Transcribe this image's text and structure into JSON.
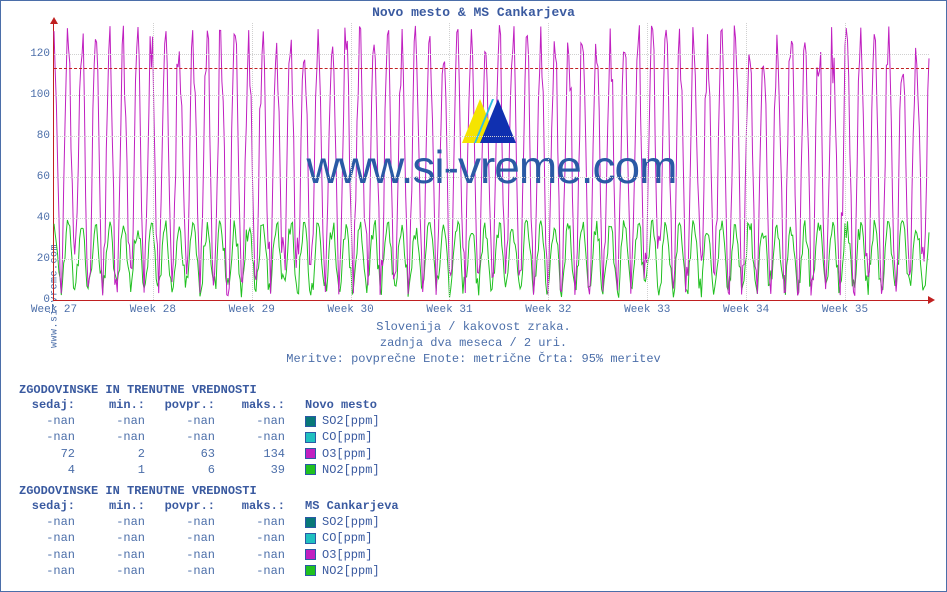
{
  "chart": {
    "title": "Novo mesto & MS Cankarjeva",
    "type": "line",
    "yaxis_source": "www.si-vreme.com",
    "watermark": "www.si-vreme.com",
    "ylim": [
      0,
      135
    ],
    "yticks": [
      0,
      20,
      40,
      60,
      80,
      100,
      120
    ],
    "limit_line_y": 113,
    "xticks": [
      "Week 27",
      "Week 28",
      "Week 29",
      "Week 30",
      "Week 31",
      "Week 32",
      "Week 33",
      "Week 34",
      "Week 35"
    ],
    "background_color": "#ffffff",
    "grid_color": "#d0d0d0",
    "axis_color": "#c02020",
    "text_color": "#4b6ea9",
    "title_fontsize": 13,
    "tick_fontsize": 11,
    "series": {
      "O3_novo_mesto": {
        "color": "#c020c0",
        "stroke_width": 1,
        "ymin": 2,
        "ymax": 134,
        "n_points": 720,
        "cycles": 63,
        "noise": 0.12
      },
      "NO2_novo_mesto": {
        "color": "#20c020",
        "stroke_width": 1,
        "ymin": 1,
        "ymax": 39,
        "n_points": 720,
        "cycles": 63,
        "noise": 0.25,
        "baseline": 4
      }
    },
    "sublines": [
      "Slovenija / kakovost zraka.",
      "zadnja dva meseca / 2 uri.",
      "Meritve: povprečne  Enote: metrične  Črta: 95% meritev"
    ]
  },
  "tables": [
    {
      "heading": "ZGODOVINSKE IN TRENUTNE VREDNOSTI",
      "columns": [
        "sedaj:",
        "min.:",
        "povpr.:",
        "maks.:"
      ],
      "station": "Novo mesto",
      "rows": [
        {
          "cells": [
            "-nan",
            "-nan",
            "-nan",
            "-nan"
          ],
          "swatch": "#087878",
          "label": "SO2[ppm]"
        },
        {
          "cells": [
            "-nan",
            "-nan",
            "-nan",
            "-nan"
          ],
          "swatch": "#20c0c0",
          "label": "CO[ppm]"
        },
        {
          "cells": [
            "72",
            "2",
            "63",
            "134"
          ],
          "swatch": "#c020c0",
          "label": "O3[ppm]"
        },
        {
          "cells": [
            "4",
            "1",
            "6",
            "39"
          ],
          "swatch": "#20c020",
          "label": "NO2[ppm]"
        }
      ]
    },
    {
      "heading": "ZGODOVINSKE IN TRENUTNE VREDNOSTI",
      "columns": [
        "sedaj:",
        "min.:",
        "povpr.:",
        "maks.:"
      ],
      "station": "MS Cankarjeva",
      "rows": [
        {
          "cells": [
            "-nan",
            "-nan",
            "-nan",
            "-nan"
          ],
          "swatch": "#087878",
          "label": "SO2[ppm]"
        },
        {
          "cells": [
            "-nan",
            "-nan",
            "-nan",
            "-nan"
          ],
          "swatch": "#20c0c0",
          "label": "CO[ppm]"
        },
        {
          "cells": [
            "-nan",
            "-nan",
            "-nan",
            "-nan"
          ],
          "swatch": "#c020c0",
          "label": "O3[ppm]"
        },
        {
          "cells": [
            "-nan",
            "-nan",
            "-nan",
            "-nan"
          ],
          "swatch": "#20c020",
          "label": "NO2[ppm]"
        }
      ]
    }
  ]
}
